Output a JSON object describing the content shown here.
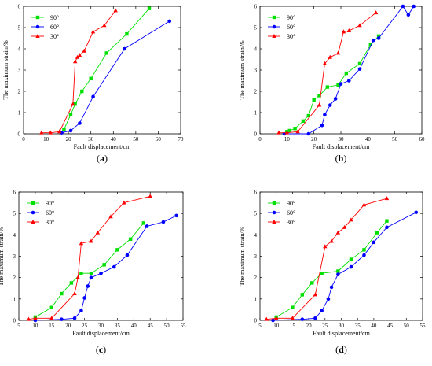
{
  "figure": {
    "legend_position": "top-left",
    "grid": false,
    "colors": {
      "90°": "#00e000",
      "60°": "#0000ff",
      "30°": "#ff0000"
    }
  },
  "chart_data": [
    {
      "type": "line",
      "panel_label": {
        "open": "(",
        "letter": "a",
        "close": ")"
      },
      "xlabel": "Fault displacement/cm",
      "ylabel": "The maximum strain/%",
      "xlim": [
        0,
        70
      ],
      "ylim": [
        0,
        6
      ],
      "xticks": [
        0,
        10,
        20,
        30,
        40,
        50,
        60,
        70
      ],
      "yticks": [
        0,
        1,
        2,
        3,
        4,
        5,
        6
      ],
      "series": [
        {
          "name": "90°",
          "marker": "square",
          "color": "#00e000",
          "x": [
            18,
            21,
            23,
            26,
            30,
            37,
            46,
            56
          ],
          "y": [
            0.2,
            0.9,
            1.4,
            2.0,
            2.6,
            3.8,
            4.7,
            5.9
          ]
        },
        {
          "name": "60°",
          "marker": "circle",
          "color": "#0000ff",
          "x": [
            17,
            21,
            25,
            31,
            45,
            65
          ],
          "y": [
            0.05,
            0.15,
            0.5,
            1.75,
            4.0,
            5.3
          ]
        },
        {
          "name": "30°",
          "marker": "triangle",
          "color": "#ff0000",
          "x": [
            8,
            12,
            16,
            22,
            23,
            24,
            25,
            27,
            31,
            36,
            41
          ],
          "y": [
            0.05,
            0.05,
            0.1,
            1.4,
            3.4,
            3.6,
            3.7,
            3.9,
            4.8,
            5.1,
            5.8
          ]
        }
      ]
    },
    {
      "type": "line",
      "panel_label": {
        "open": "(",
        "letter": "b",
        "close": ")"
      },
      "xlabel": "Fault displacement/cm",
      "ylabel": "The maximum strain/%",
      "xlim": [
        0,
        60
      ],
      "ylim": [
        0,
        6
      ],
      "xticks": [
        0,
        10,
        20,
        30,
        40,
        50,
        60
      ],
      "yticks": [
        0,
        1,
        2,
        3,
        4,
        5,
        6
      ],
      "series": [
        {
          "name": "90°",
          "marker": "square",
          "color": "#00e000",
          "x": [
            10,
            11,
            13,
            16,
            18,
            20,
            22,
            25,
            29,
            32,
            37,
            41,
            44
          ],
          "y": [
            0.1,
            0.15,
            0.25,
            0.6,
            0.85,
            1.6,
            1.8,
            2.2,
            2.3,
            2.85,
            3.3,
            4.2,
            4.6
          ]
        },
        {
          "name": "60°",
          "marker": "circle",
          "color": "#0000ff",
          "x": [
            9,
            18,
            23,
            24,
            26,
            28,
            30,
            33,
            37,
            42,
            44,
            53,
            55,
            57
          ],
          "y": [
            0.0,
            0.0,
            0.4,
            0.9,
            1.35,
            1.65,
            2.35,
            2.5,
            3.05,
            4.4,
            4.5,
            6.0,
            5.6,
            6.0
          ]
        },
        {
          "name": "30°",
          "marker": "triangle",
          "color": "#ff0000",
          "x": [
            7,
            10,
            14,
            22,
            24,
            26,
            29,
            31,
            33,
            37,
            43
          ],
          "y": [
            0.05,
            0.05,
            0.1,
            1.35,
            3.3,
            3.6,
            3.8,
            4.8,
            4.85,
            5.1,
            5.7
          ]
        }
      ]
    },
    {
      "type": "line",
      "panel_label": {
        "open": "(",
        "letter": "c",
        "close": ")"
      },
      "xlabel": "Fault displacement/cm",
      "ylabel": "The maximum strain/%",
      "xlim": [
        5,
        55
      ],
      "ylim": [
        0,
        6
      ],
      "xticks": [
        5,
        10,
        15,
        20,
        25,
        30,
        35,
        40,
        45,
        50,
        55
      ],
      "yticks": [
        0,
        1,
        2,
        3,
        4,
        5,
        6
      ],
      "series": [
        {
          "name": "90°",
          "marker": "square",
          "color": "#00e000",
          "x": [
            10,
            15,
            18,
            21,
            24,
            27,
            31,
            35,
            39,
            43
          ],
          "y": [
            0.15,
            0.6,
            1.25,
            1.75,
            2.2,
            2.2,
            2.6,
            3.3,
            3.8,
            4.55
          ]
        },
        {
          "name": "60°",
          "marker": "circle",
          "color": "#0000ff",
          "x": [
            10,
            18,
            22,
            24,
            25,
            26,
            27,
            30,
            34,
            38,
            44,
            49,
            53
          ],
          "y": [
            0.0,
            0.05,
            0.1,
            0.45,
            1.05,
            1.6,
            2.0,
            2.2,
            2.5,
            3.05,
            4.4,
            4.6,
            4.9
          ]
        },
        {
          "name": "30°",
          "marker": "triangle",
          "color": "#ff0000",
          "x": [
            8,
            10,
            15,
            22,
            23,
            24,
            27,
            29,
            33,
            37,
            45
          ],
          "y": [
            0.05,
            0.1,
            0.1,
            1.25,
            2.0,
            3.6,
            3.7,
            4.1,
            4.85,
            5.5,
            5.8
          ]
        }
      ]
    },
    {
      "type": "line",
      "panel_label": {
        "open": "(",
        "letter": "d",
        "close": ")"
      },
      "xlabel": "Fault displacement/cm",
      "ylabel": "The maximum strain/%",
      "xlim": [
        5,
        55
      ],
      "ylim": [
        0,
        6
      ],
      "xticks": [
        5,
        10,
        15,
        20,
        25,
        30,
        35,
        40,
        45,
        50,
        55
      ],
      "yticks": [
        0,
        1,
        2,
        3,
        4,
        5,
        6
      ],
      "series": [
        {
          "name": "90°",
          "marker": "square",
          "color": "#00e000",
          "x": [
            10,
            15,
            18,
            21,
            24,
            29,
            33,
            37,
            41,
            44
          ],
          "y": [
            0.15,
            0.6,
            1.2,
            1.75,
            2.2,
            2.3,
            2.85,
            3.3,
            4.1,
            4.65
          ]
        },
        {
          "name": "60°",
          "marker": "circle",
          "color": "#0000ff",
          "x": [
            9,
            18,
            22,
            24,
            26,
            27,
            29,
            33,
            37,
            40,
            44,
            53
          ],
          "y": [
            0.0,
            0.05,
            0.1,
            0.45,
            1.0,
            1.55,
            2.15,
            2.5,
            3.05,
            3.65,
            4.35,
            5.05
          ]
        },
        {
          "name": "30°",
          "marker": "triangle",
          "color": "#ff0000",
          "x": [
            7,
            10,
            15,
            22,
            25,
            27,
            29,
            31,
            33,
            37,
            44
          ],
          "y": [
            0.05,
            0.1,
            0.1,
            1.2,
            3.45,
            3.7,
            4.1,
            4.35,
            4.7,
            5.4,
            5.7
          ]
        }
      ]
    }
  ]
}
